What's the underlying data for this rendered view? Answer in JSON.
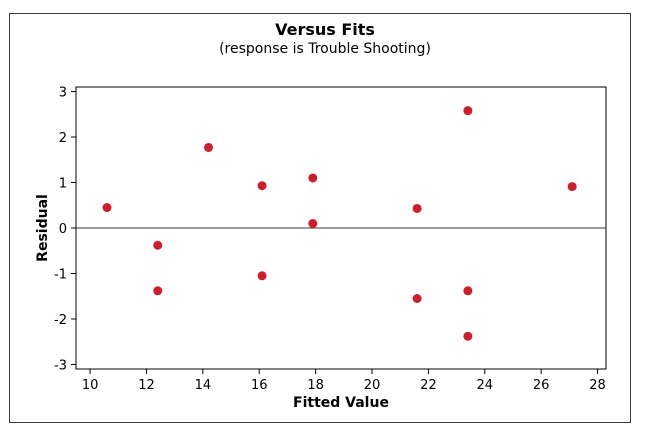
{
  "chart_data": {
    "type": "scatter",
    "title": "Versus Fits",
    "subtitle": "(response is Trouble Shooting)",
    "xlabel": "Fitted Value",
    "ylabel": "Residual",
    "xlim": [
      9.5,
      28.3
    ],
    "ylim": [
      -3.1,
      3.1
    ],
    "xticks": [
      10,
      12,
      14,
      16,
      18,
      20,
      22,
      24,
      26,
      28
    ],
    "yticks": [
      -3,
      -2,
      -1,
      0,
      1,
      2,
      3
    ],
    "reference_line_y": 0,
    "grid": false,
    "marker_color": "#cc1f2b",
    "points": [
      {
        "x": 10.6,
        "y": 0.45
      },
      {
        "x": 12.4,
        "y": -0.38
      },
      {
        "x": 12.4,
        "y": -1.38
      },
      {
        "x": 14.2,
        "y": 1.77
      },
      {
        "x": 16.1,
        "y": 0.93
      },
      {
        "x": 16.1,
        "y": -1.05
      },
      {
        "x": 17.9,
        "y": 1.1
      },
      {
        "x": 17.9,
        "y": 0.1
      },
      {
        "x": 21.6,
        "y": 0.43
      },
      {
        "x": 21.6,
        "y": -1.55
      },
      {
        "x": 23.4,
        "y": 2.58
      },
      {
        "x": 23.4,
        "y": -1.38
      },
      {
        "x": 23.4,
        "y": -2.38
      },
      {
        "x": 27.1,
        "y": 0.91
      }
    ]
  }
}
